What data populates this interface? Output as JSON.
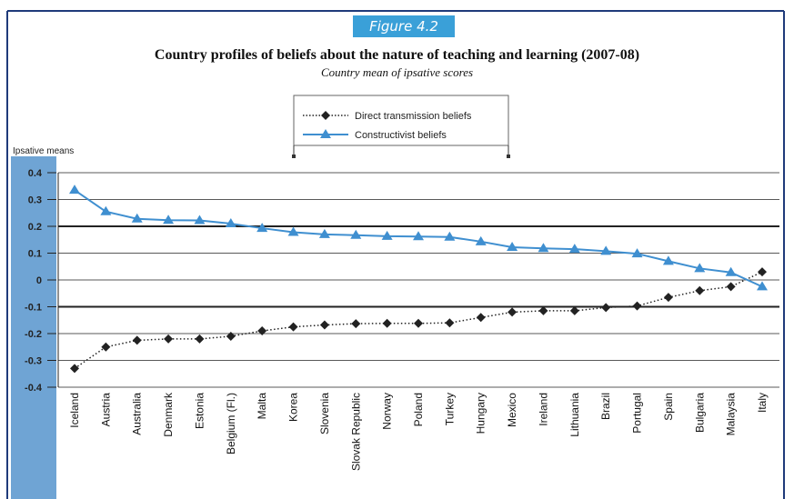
{
  "figure_label": "Figure 4.2",
  "colors": {
    "accent": "#3aa0d8",
    "axis_band": "#6fa4d4",
    "constructivist": "#3f8fd0",
    "direct": "#222222",
    "frame": "#1f3a7a"
  },
  "chart_data": {
    "type": "line",
    "title": "Country profiles of beliefs about the nature of teaching and learning (2007-08)",
    "subtitle": "Country mean of ipsative scores",
    "ylabel": "Ipsative means",
    "ylim": [
      -0.4,
      0.4
    ],
    "yticks": [
      "0.4",
      "0.3",
      "0.2",
      "0.1",
      "0",
      "-0.1",
      "-0.2",
      "-0.3",
      "-0.4"
    ],
    "grid": true,
    "legend_position": "top-center",
    "categories": [
      "Iceland",
      "Austria",
      "Australia",
      "Denmark",
      "Estonia",
      "Belgium (Fl.)",
      "Malta",
      "Korea",
      "Slovenia",
      "Slovak Republic",
      "Norway",
      "Poland",
      "Turkey",
      "Hungary",
      "Mexico",
      "Ireland",
      "Lithuania",
      "Brazil",
      "Portugal",
      "Spain",
      "Bulgaria",
      "Malaysia",
      "Italy"
    ],
    "series": [
      {
        "name": "Direct transmission beliefs",
        "style": "dotted-diamond",
        "values": [
          -0.33,
          -0.25,
          -0.225,
          -0.22,
          -0.22,
          -0.21,
          -0.19,
          -0.175,
          -0.168,
          -0.163,
          -0.162,
          -0.162,
          -0.16,
          -0.14,
          -0.12,
          -0.115,
          -0.115,
          -0.103,
          -0.097,
          -0.065,
          -0.04,
          -0.025,
          0.03
        ]
      },
      {
        "name": "Constructivist beliefs",
        "style": "solid-triangle",
        "values": [
          0.335,
          0.255,
          0.228,
          0.223,
          0.222,
          0.21,
          0.193,
          0.178,
          0.17,
          0.167,
          0.163,
          0.162,
          0.16,
          0.143,
          0.122,
          0.118,
          0.115,
          0.107,
          0.098,
          0.07,
          0.043,
          0.028,
          -0.025
        ]
      }
    ]
  }
}
